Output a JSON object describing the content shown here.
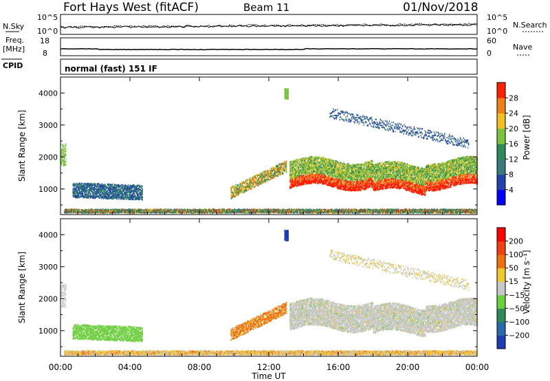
{
  "header": {
    "station": "Fort Hays West (fitACF)",
    "beam": "Beam 11",
    "date": "01/Nov/2018"
  },
  "strip_panels": {
    "noise": {
      "left_label": "N.Sky",
      "right_label": "N.Search",
      "left_ticks": [
        "10^5",
        "10^0"
      ],
      "right_ticks": [
        "10^5",
        "10^0"
      ]
    },
    "freq": {
      "left_label_1": "Freq.",
      "left_label_2": "[MHz]",
      "right_label": "Nave",
      "left_ticks": [
        "18",
        "8"
      ],
      "right_ticks": [
        "60",
        "0"
      ],
      "cpid_label": "CPID"
    },
    "cpid_text": "normal (fast) 151 IF"
  },
  "chart_data": [
    {
      "type": "heatmap",
      "name": "power",
      "ylabel": "Slant Range [km]",
      "xlabel": "",
      "ylim": [
        200,
        4500
      ],
      "yticks": [
        "1000",
        "2000",
        "3000",
        "4000"
      ],
      "colorbar": {
        "label": "Power [dB]",
        "ticks": [
          "4",
          "8",
          "12",
          "16",
          "20",
          "24",
          "28"
        ],
        "colors": [
          "#0000ff",
          "#2244aa",
          "#3a7a7a",
          "#2e8b57",
          "#7cc440",
          "#f0c020",
          "#f08018",
          "#ff2000"
        ]
      }
    },
    {
      "type": "heatmap",
      "name": "velocity",
      "ylabel": "Slant Range [km]",
      "xlabel": "Time UT",
      "xticks": [
        "00:00",
        "04:00",
        "08:00",
        "12:00",
        "16:00",
        "20:00",
        "00:00"
      ],
      "ylim": [
        200,
        4500
      ],
      "yticks": [
        "1000",
        "2000",
        "3000",
        "4000"
      ],
      "colorbar": {
        "label": "Velocity [m s⁻¹]",
        "ticks": [
          "200",
          "100",
          "50",
          "15",
          "−15",
          "−50",
          "−100",
          "−200"
        ],
        "colors": [
          "#1e3cb4",
          "#2a6aa8",
          "#2e8b57",
          "#6cd040",
          "#c8c8c8",
          "#f0c830",
          "#f07010",
          "#f04010",
          "#ff0000"
        ]
      }
    }
  ]
}
